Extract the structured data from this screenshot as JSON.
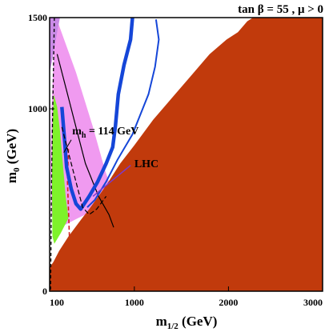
{
  "chart_data": {
    "type": "area",
    "title": "tan β = 55 ,  μ > 0",
    "xlabel": "m",
    "xlabel_sub": "1/2",
    "xlabel_unit": " (GeV)",
    "ylabel": "m",
    "ylabel_sub": "0",
    "ylabel_unit": " (GeV)",
    "xlim": [
      100,
      3000
    ],
    "ylim": [
      0,
      1500
    ],
    "x_ticks": [
      {
        "value": 100,
        "label": "100"
      },
      {
        "value": 1000,
        "label": "1000"
      },
      {
        "value": 2000,
        "label": "2000"
      },
      {
        "value": 3000,
        "label": "3000"
      }
    ],
    "y_ticks": [
      {
        "value": 0,
        "label": "0"
      },
      {
        "value": 1000,
        "label": "1000"
      },
      {
        "value": 1500,
        "label": "1500"
      }
    ],
    "grid": false,
    "colors": {
      "excluded": "#c13a0c",
      "gmu2": "#f09af0",
      "bsg": "#7ef22a",
      "wmap": "#1546d8",
      "lep_violet": "#c98ae6",
      "higgs": "#d42020"
    },
    "annotations": [
      {
        "text": "m",
        "sub": "h",
        "suffix": " = 114 GeV",
        "x": 340,
        "y": 860
      },
      {
        "text": "LHC",
        "x": 1000,
        "y": 680
      }
    ],
    "series": [
      {
        "region": "excluded",
        "values": [
          [
            100,
            0
          ],
          [
            100,
            130
          ],
          [
            140,
            160
          ],
          [
            200,
            220
          ],
          [
            300,
            300
          ],
          [
            430,
            390
          ],
          [
            520,
            450
          ],
          [
            700,
            580
          ],
          [
            850,
            700
          ],
          [
            1000,
            800
          ],
          [
            1200,
            940
          ],
          [
            1400,
            1060
          ],
          [
            1600,
            1180
          ],
          [
            1800,
            1300
          ],
          [
            1980,
            1380
          ],
          [
            2100,
            1420
          ],
          [
            2200,
            1480
          ],
          [
            2260,
            1500
          ],
          [
            3000,
            1500
          ],
          [
            3000,
            0
          ]
        ]
      },
      {
        "region": "gmu2",
        "values": [
          [
            170,
            1500
          ],
          [
            380,
            1200
          ],
          [
            560,
            900
          ],
          [
            690,
            660
          ],
          [
            800,
            500
          ],
          [
            720,
            470
          ],
          [
            560,
            440
          ],
          [
            400,
            400
          ],
          [
            250,
            360
          ],
          [
            160,
            380
          ],
          [
            120,
            420
          ],
          [
            110,
            700
          ],
          [
            120,
            1000
          ],
          [
            140,
            1250
          ],
          [
            160,
            1500
          ]
        ]
      },
      {
        "region": "lep_violet",
        "values": [
          [
            100,
            1500
          ],
          [
            210,
            1500
          ],
          [
            180,
            1420
          ],
          [
            140,
            1300
          ],
          [
            120,
            1250
          ],
          [
            100,
            1200
          ]
        ]
      },
      {
        "region": "bsg",
        "values": [
          [
            145,
            1080
          ],
          [
            180,
            1010
          ],
          [
            210,
            880
          ],
          [
            240,
            700
          ],
          [
            270,
            520
          ],
          [
            300,
            400
          ],
          [
            220,
            320
          ],
          [
            150,
            260
          ],
          [
            130,
            300
          ],
          [
            125,
            600
          ],
          [
            130,
            900
          ]
        ]
      },
      {
        "region": "wmap-band",
        "values": [
          [
            230,
            1010
          ],
          [
            260,
            820
          ],
          [
            280,
            680
          ],
          [
            330,
            560
          ],
          [
            380,
            480
          ],
          [
            430,
            450
          ],
          [
            520,
            520
          ],
          [
            610,
            600
          ],
          [
            700,
            700
          ],
          [
            770,
            790
          ],
          [
            800,
            910
          ],
          [
            830,
            1080
          ],
          [
            890,
            1240
          ],
          [
            960,
            1380
          ],
          [
            980,
            1500
          ]
        ]
      },
      {
        "region": "wmap-funnel",
        "values": [
          [
            1230,
            1490
          ],
          [
            1260,
            1380
          ],
          [
            1220,
            1230
          ],
          [
            1150,
            1080
          ],
          [
            980,
            860
          ],
          [
            820,
            720
          ],
          [
            700,
            600
          ],
          [
            580,
            500
          ],
          [
            500,
            460
          ]
        ]
      },
      {
        "region": "higgs-line",
        "values": [
          [
            300,
            780
          ],
          [
            290,
            600
          ],
          [
            300,
            450
          ],
          [
            310,
            300
          ]
        ]
      },
      {
        "region": "lep-chargino-dashed",
        "values": [
          [
            150,
            1500
          ],
          [
            140,
            1200
          ],
          [
            130,
            900
          ],
          [
            120,
            600
          ],
          [
            115,
            300
          ],
          [
            110,
            0
          ]
        ]
      },
      {
        "region": "lhc-dashed",
        "values": [
          [
            230,
            900
          ],
          [
            300,
            760
          ],
          [
            380,
            600
          ],
          [
            450,
            460
          ],
          [
            520,
            420
          ],
          [
            600,
            450
          ],
          [
            700,
            520
          ]
        ]
      },
      {
        "region": "solid-boundary",
        "values": [
          [
            180,
            1300
          ],
          [
            280,
            1100
          ],
          [
            380,
            900
          ],
          [
            480,
            700
          ],
          [
            620,
            520
          ],
          [
            730,
            420
          ],
          [
            780,
            350
          ]
        ]
      }
    ]
  }
}
